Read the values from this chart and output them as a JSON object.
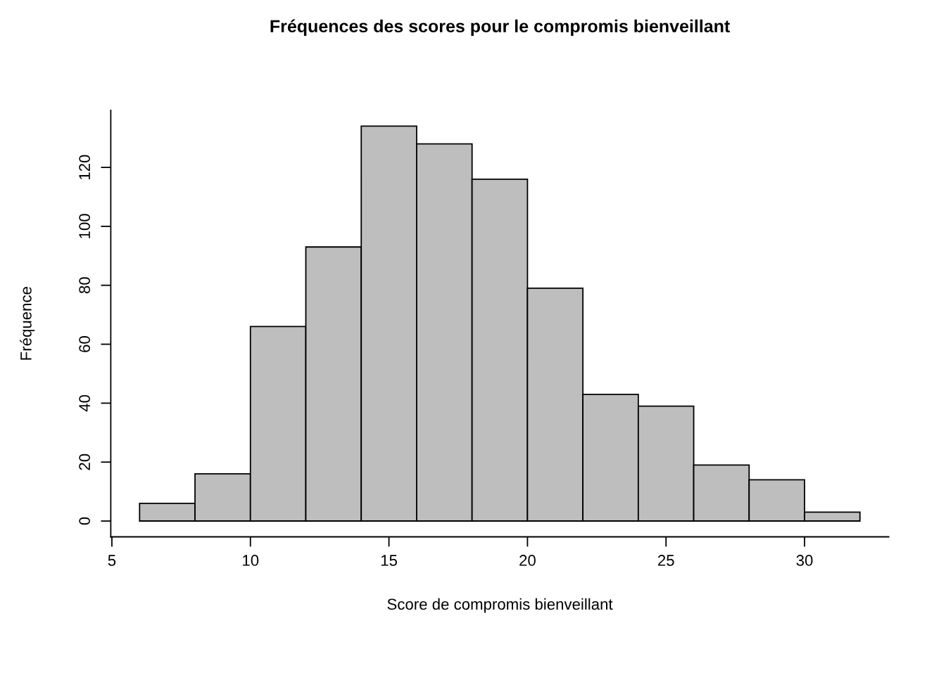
{
  "chart_data": {
    "type": "histogram",
    "title": "Fréquences des scores pour le compromis bienveillant",
    "xlabel": "Score de compromis bienveillant",
    "ylabel": "Fréquence",
    "bins": [
      6,
      8,
      10,
      12,
      14,
      16,
      18,
      20,
      22,
      24,
      26,
      28,
      30,
      32
    ],
    "values": [
      6,
      16,
      66,
      93,
      134,
      128,
      116,
      79,
      43,
      39,
      19,
      14,
      3
    ],
    "color": "#bebebe",
    "xlim": [
      4.96,
      33.04
    ],
    "ylim": [
      -5.36,
      139.36
    ],
    "xticks": [
      5,
      10,
      15,
      20,
      25,
      30
    ],
    "yticks": [
      0,
      20,
      40,
      60,
      80,
      100,
      120
    ],
    "grid": false
  }
}
